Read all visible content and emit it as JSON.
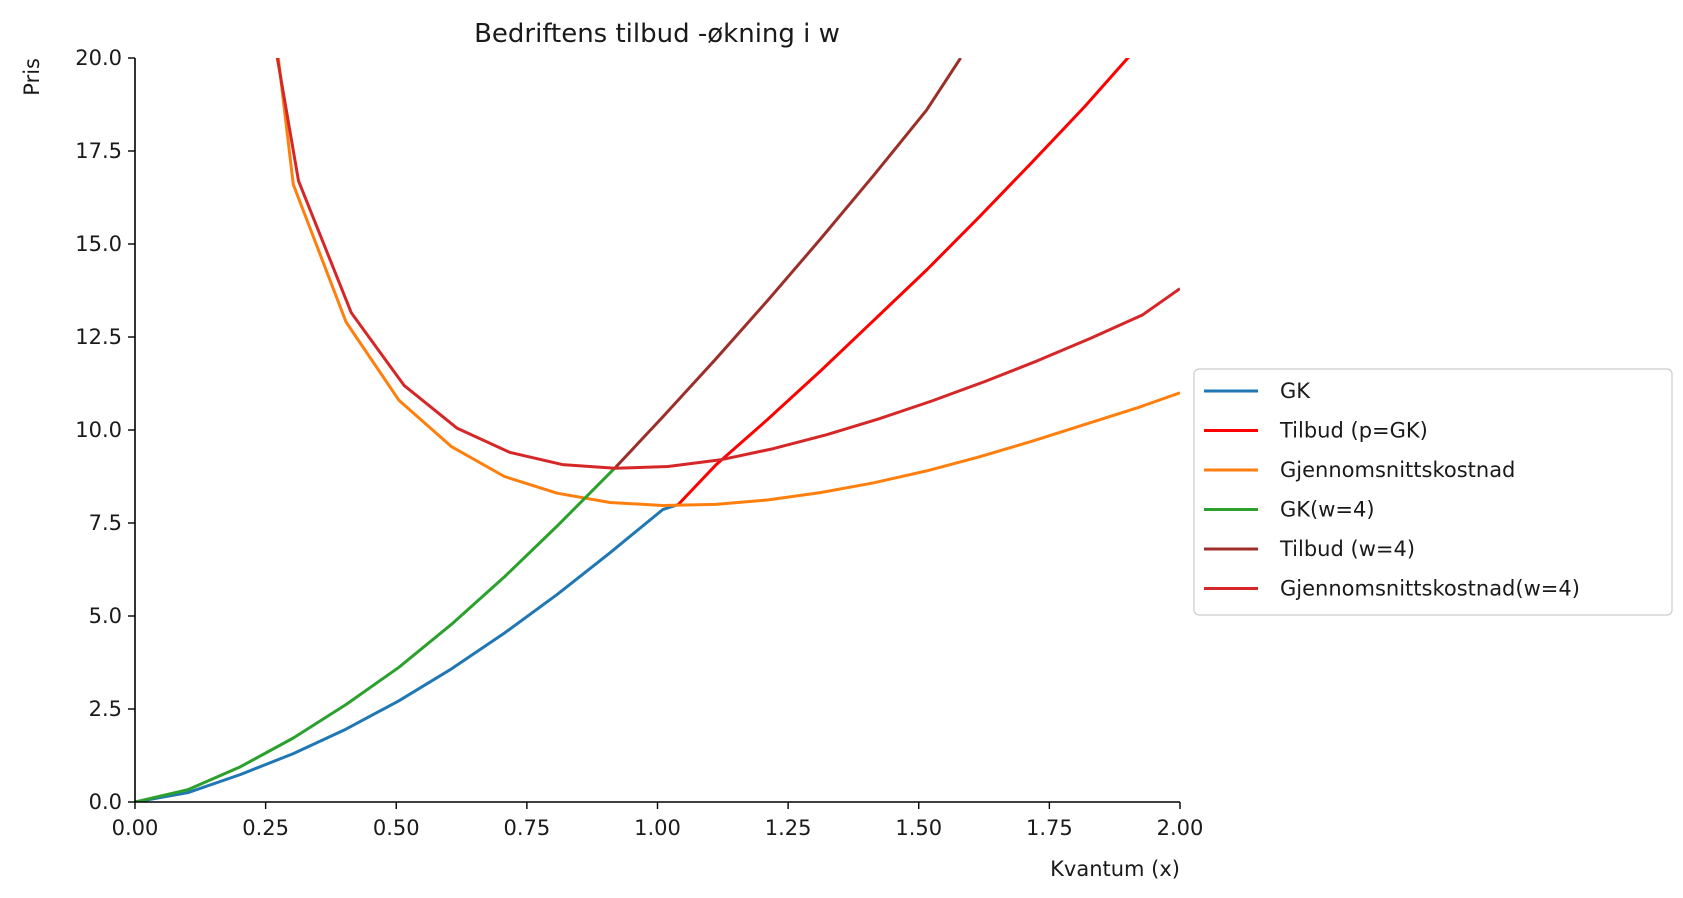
{
  "chart_data": {
    "type": "line",
    "title": "Bedriftens tilbud -økning i w",
    "xlabel": "Kvantum (x)",
    "ylabel": "Pris",
    "xlim": [
      0,
      2
    ],
    "ylim": [
      0,
      20
    ],
    "xticks": [
      0,
      0.25,
      0.5,
      0.75,
      1.0,
      1.25,
      1.5,
      1.75,
      2.0
    ],
    "xtick_labels": [
      "0.00",
      "0.25",
      "0.50",
      "0.75",
      "1.00",
      "1.25",
      "1.50",
      "1.75",
      "2.00"
    ],
    "yticks": [
      0,
      2.5,
      5,
      7.5,
      10,
      12.5,
      15,
      17.5,
      20
    ],
    "ytick_labels": [
      "0.0",
      "2.5",
      "5.0",
      "7.5",
      "10.0",
      "12.5",
      "15.0",
      "17.5",
      "20.0"
    ],
    "grid": false,
    "legend_position": "center-right outside",
    "series": [
      {
        "name": "GK",
        "color": "#1f77b4",
        "x": [
          0,
          0.101,
          0.202,
          0.303,
          0.404,
          0.505,
          0.606,
          0.707,
          0.808,
          0.909,
          1.01,
          1.04
        ],
        "y": [
          0,
          0.25,
          0.74,
          1.3,
          1.96,
          2.72,
          3.58,
          4.54,
          5.58,
          6.7,
          7.86,
          8.0
        ]
      },
      {
        "name": "Tilbud (p=GK)",
        "color": "#ff0000",
        "x": [
          1.04,
          1.111,
          1.212,
          1.313,
          1.414,
          1.515,
          1.616,
          1.717,
          1.818,
          1.919,
          2.0
        ],
        "y": [
          8.0,
          9.05,
          10.3,
          11.6,
          12.95,
          14.3,
          15.73,
          17.2,
          18.7,
          20.3,
          21.5
        ]
      },
      {
        "name": "Gjennomsnittskostnad",
        "color": "#ff7f0e",
        "x": [
          0.27,
          0.303,
          0.404,
          0.505,
          0.606,
          0.707,
          0.808,
          0.909,
          1.01,
          1.111,
          1.212,
          1.313,
          1.414,
          1.515,
          1.616,
          1.717,
          1.818,
          1.919,
          2.0
        ],
        "y": [
          20.5,
          16.6,
          12.9,
          10.8,
          9.55,
          8.75,
          8.3,
          8.05,
          7.97,
          8.0,
          8.12,
          8.32,
          8.58,
          8.9,
          9.28,
          9.7,
          10.15,
          10.6,
          11.0
        ]
      },
      {
        "name": "GK(w=4)",
        "color": "#2ca02c",
        "x": [
          0,
          0.101,
          0.202,
          0.303,
          0.404,
          0.505,
          0.606,
          0.707,
          0.808,
          0.92
        ],
        "y": [
          0,
          0.33,
          0.95,
          1.72,
          2.62,
          3.62,
          4.78,
          6.05,
          7.42,
          9.0
        ]
      },
      {
        "name": "Tilbud (w=4)",
        "color": "#9c2f2a",
        "x": [
          0.92,
          1.01,
          1.111,
          1.212,
          1.313,
          1.414,
          1.515,
          1.58
        ],
        "y": [
          9.0,
          10.35,
          11.9,
          13.5,
          15.15,
          16.85,
          18.6,
          20.0
        ]
      },
      {
        "name": "Gjennomsnittskostnad(w=4)",
        "color": "#d62728",
        "x": [
          0.265,
          0.313,
          0.414,
          0.515,
          0.616,
          0.717,
          0.818,
          0.919,
          1.02,
          1.121,
          1.222,
          1.323,
          1.424,
          1.525,
          1.626,
          1.727,
          1.828,
          1.929,
          2.0
        ],
        "y": [
          20.6,
          16.7,
          13.15,
          11.2,
          10.05,
          9.4,
          9.07,
          8.97,
          9.02,
          9.2,
          9.5,
          9.87,
          10.3,
          10.78,
          11.3,
          11.86,
          12.46,
          13.1,
          13.8
        ]
      }
    ]
  }
}
